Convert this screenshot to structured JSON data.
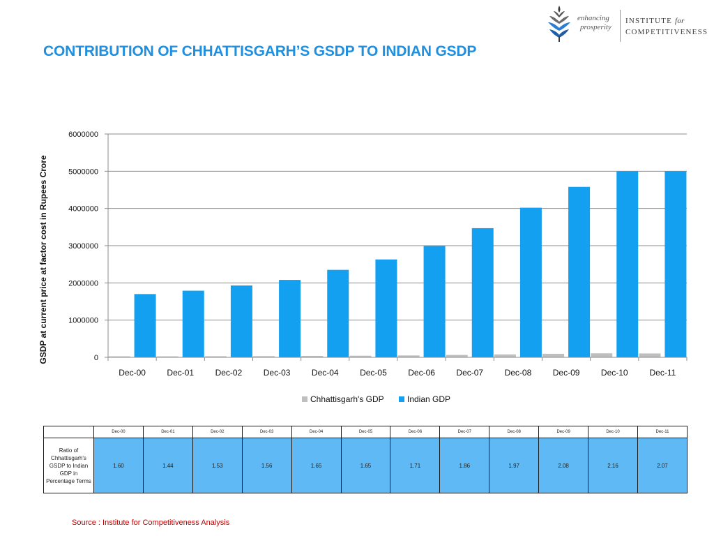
{
  "logo": {
    "tagline_1": "enhancing",
    "tagline_2": "prosperity",
    "name_line_1": "INSTITUTE",
    "name_line_1_em": "for",
    "name_line_2": "COMPETITIVENESS"
  },
  "slide": {
    "title": "CONTRIBUTION OF CHHATTISGARH’S GSDP TO INDIAN GSDP",
    "source": "Source : Institute for Competitiveness Analysis"
  },
  "chart_data": {
    "type": "bar",
    "title": "",
    "xlabel": "",
    "ylabel": "GSDP at current price at factor cost in Rupees Crore",
    "categories": [
      "Dec-00",
      "Dec-01",
      "Dec-02",
      "Dec-03",
      "Dec-04",
      "Dec-05",
      "Dec-06",
      "Dec-07",
      "Dec-08",
      "Dec-09",
      "Dec-10",
      "Dec-11"
    ],
    "series": [
      {
        "name": "Chhattisgarh's GDP",
        "color": "#bfbfbf",
        "values": [
          27000,
          26000,
          29000,
          32000,
          38000,
          43000,
          51000,
          64000,
          79000,
          96000,
          108000,
          104000
        ]
      },
      {
        "name": "Indian GDP",
        "color": "#14a0f0",
        "values": [
          1700000,
          1790000,
          1930000,
          2080000,
          2350000,
          2630000,
          2990000,
          3470000,
          4020000,
          4580000,
          5000000,
          5000000
        ]
      }
    ],
    "ylim": [
      0,
      6000000
    ],
    "yticks": [
      0,
      1000000,
      2000000,
      3000000,
      4000000,
      5000000,
      6000000
    ],
    "grid": true,
    "legend_position": "bottom"
  },
  "ratio_table": {
    "row_label": "Ratio of Chhattisgarh's GSDP to Indian GDP in Percentage Terms",
    "headers": [
      "Dec-00",
      "Dec-01",
      "Dec-02",
      "Dec-03",
      "Dec-04",
      "Dec-05",
      "Dec-06",
      "Dec-07",
      "Dec-08",
      "Dec-09",
      "Dec-10",
      "Dec-11"
    ],
    "values": [
      "1.60",
      "1.44",
      "1.53",
      "1.56",
      "1.65",
      "1.65",
      "1.71",
      "1.86",
      "1.97",
      "2.08",
      "2.16",
      "2.07"
    ]
  }
}
